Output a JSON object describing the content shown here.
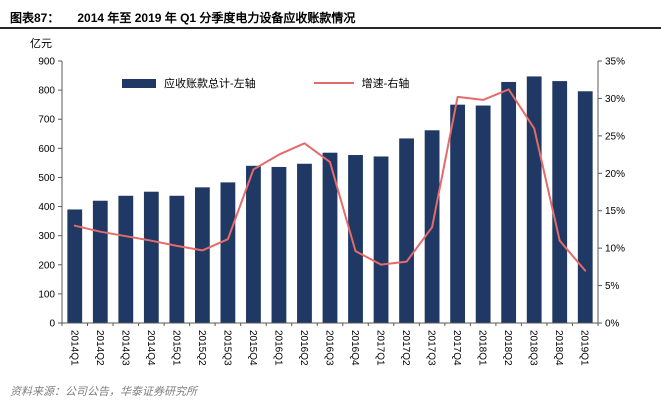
{
  "header": {
    "figure_label": "图表87：",
    "title": "2014 年至 2019 年 Q1 分季度电力设备应收账款情况"
  },
  "footer": {
    "source": "资料来源：公司公告，华泰证券研究所"
  },
  "chart_data": {
    "type": "bar",
    "subtype": "bar-and-line-combo",
    "unit_label": "亿元",
    "categories": [
      "2014Q1",
      "2014Q2",
      "2014Q3",
      "2014Q4",
      "2015Q1",
      "2015Q2",
      "2015Q3",
      "2015Q4",
      "2016Q1",
      "2016Q2",
      "2016Q3",
      "2016Q4",
      "2017Q1",
      "2017Q2",
      "2017Q3",
      "2017Q4",
      "2018Q1",
      "2018Q2",
      "2018Q3",
      "2018Q4",
      "2019Q1"
    ],
    "series": [
      {
        "name": "应收账款总计-左轴",
        "type": "bar",
        "axis": "left",
        "values": [
          390,
          420,
          437,
          451,
          437,
          466,
          483,
          540,
          536,
          547,
          585,
          577,
          572,
          634,
          662,
          750,
          747,
          828,
          847,
          831,
          796
        ]
      },
      {
        "name": "增速-右轴",
        "type": "line",
        "axis": "right",
        "values": [
          13.0,
          12.2,
          11.6,
          11.0,
          10.3,
          9.7,
          11.2,
          20.5,
          22.5,
          24.0,
          21.5,
          9.6,
          7.8,
          8.2,
          12.8,
          30.2,
          29.8,
          31.2,
          26.0,
          11.0,
          7.0
        ]
      }
    ],
    "left_axis": {
      "min": 0,
      "max": 900,
      "ticks": [
        "0",
        "100",
        "200",
        "300",
        "400",
        "500",
        "600",
        "700",
        "800",
        "900"
      ]
    },
    "right_axis": {
      "min": 0,
      "max": 35,
      "ticks": [
        "0%",
        "5%",
        "10%",
        "15%",
        "20%",
        "25%",
        "30%",
        "35%"
      ]
    },
    "grid": false,
    "legend_position": "top-inside"
  },
  "colors": {
    "bar": "#1F3864",
    "line": "#E56A6A",
    "axis": "#595959",
    "tick_text": "#000000",
    "header_rule": "#262626",
    "footer_text": "#7F7F7F"
  }
}
